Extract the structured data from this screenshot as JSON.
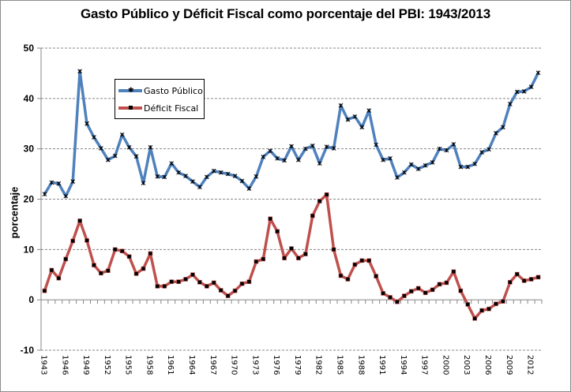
{
  "chart_data": {
    "type": "line",
    "title": "Gasto Público y Déficit Fiscal como porcentaje del PBI: 1943/2013",
    "xlabel": "",
    "ylabel": "porcentaje",
    "ylim": [
      -10,
      50
    ],
    "yticks": [
      "-10",
      "0",
      "10",
      "20",
      "30",
      "40",
      "50"
    ],
    "grid": true,
    "legend_position": "top-left",
    "x": [
      1943,
      1944,
      1945,
      1946,
      1947,
      1948,
      1949,
      1950,
      1951,
      1952,
      1953,
      1954,
      1955,
      1956,
      1957,
      1958,
      1959,
      1960,
      1961,
      1962,
      1963,
      1964,
      1965,
      1966,
      1967,
      1968,
      1969,
      1970,
      1971,
      1972,
      1973,
      1974,
      1975,
      1976,
      1977,
      1978,
      1979,
      1980,
      1981,
      1982,
      1983,
      1984,
      1985,
      1986,
      1987,
      1988,
      1989,
      1990,
      1991,
      1992,
      1993,
      1994,
      1995,
      1996,
      1997,
      1998,
      1999,
      2000,
      2001,
      2002,
      2003,
      2004,
      2005,
      2006,
      2007,
      2008,
      2009,
      2010,
      2011,
      2012,
      2013
    ],
    "xticks": [
      "1943",
      "1946",
      "1949",
      "1952",
      "1955",
      "1958",
      "1961",
      "1964",
      "1967",
      "1970",
      "1973",
      "1976",
      "1979",
      "1982",
      "1985",
      "1988",
      "1991",
      "1994",
      "1997",
      "2000",
      "2003",
      "2006",
      "2009",
      "2012"
    ],
    "series": [
      {
        "name": "Gasto Público",
        "color": "#4f81bd",
        "values": [
          21.0,
          23.3,
          23.1,
          20.6,
          23.5,
          45.4,
          35.0,
          32.3,
          30.1,
          27.8,
          28.6,
          32.8,
          30.3,
          28.5,
          23.2,
          30.3,
          24.5,
          24.4,
          27.1,
          25.3,
          24.6,
          23.5,
          22.4,
          24.4,
          25.6,
          25.3,
          25.0,
          24.6,
          23.6,
          22.1,
          24.5,
          28.4,
          29.6,
          28.1,
          27.7,
          30.5,
          27.8,
          30.0,
          30.6,
          27.1,
          30.4,
          30.1,
          38.6,
          35.8,
          36.4,
          34.3,
          37.6,
          30.8,
          27.8,
          28.1,
          24.3,
          25.3,
          26.9,
          26.0,
          26.7,
          27.3,
          30.0,
          29.7,
          30.9,
          26.4,
          26.4,
          27.0,
          29.3,
          29.9,
          33.1,
          34.3,
          38.9,
          41.3,
          41.4,
          42.3,
          45.1
        ]
      },
      {
        "name": "Déficit Fiscal",
        "color": "#c0504d",
        "values": [
          1.8,
          5.9,
          4.3,
          8.1,
          11.7,
          15.7,
          11.8,
          6.9,
          5.3,
          5.8,
          10.0,
          9.7,
          8.6,
          5.2,
          6.2,
          9.2,
          2.7,
          2.7,
          3.6,
          3.6,
          4.1,
          5.0,
          3.5,
          2.7,
          3.4,
          1.9,
          0.8,
          1.8,
          3.2,
          3.6,
          7.6,
          8.1,
          16.1,
          13.6,
          8.3,
          10.2,
          8.3,
          9.1,
          16.7,
          19.6,
          20.9,
          10.0,
          4.8,
          4.1,
          7.0,
          7.8,
          7.8,
          4.7,
          1.3,
          0.5,
          -0.4,
          0.8,
          1.7,
          2.3,
          1.4,
          2.0,
          3.1,
          3.4,
          5.6,
          1.8,
          -0.9,
          -3.7,
          -2.1,
          -1.8,
          -0.8,
          -0.3,
          3.5,
          5.1,
          3.8,
          4.1,
          4.5
        ]
      }
    ]
  }
}
